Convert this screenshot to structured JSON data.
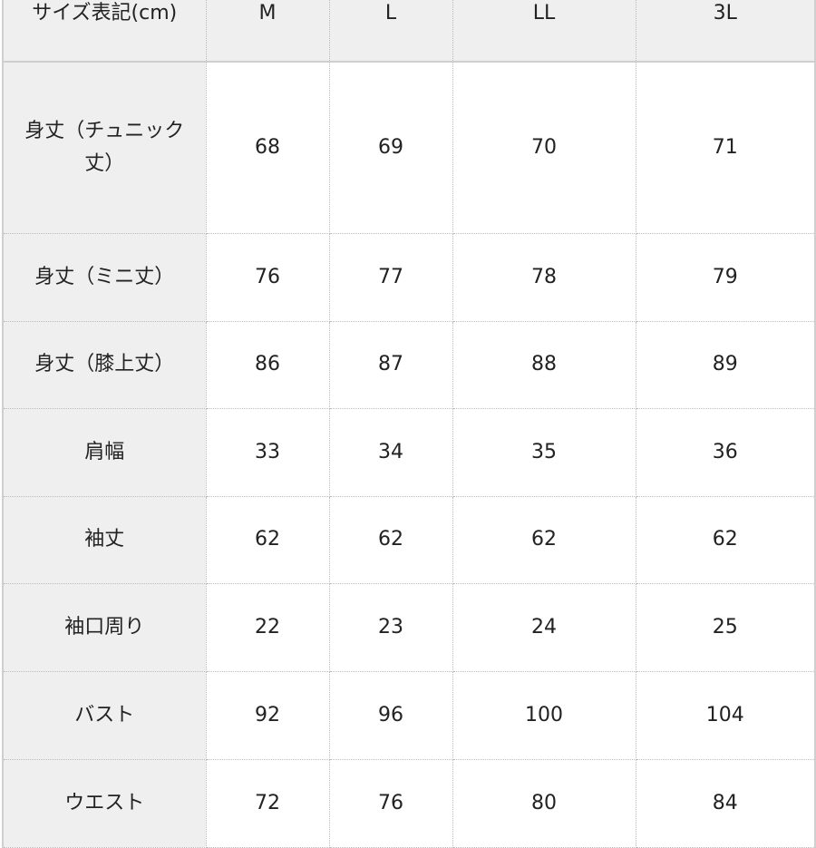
{
  "table": {
    "header": [
      "サイズ表記(cm)",
      "M",
      "L",
      "LL",
      "3L"
    ],
    "rows": [
      {
        "label": "身丈（チュニック丈）",
        "values": [
          "68",
          "69",
          "70",
          "71"
        ]
      },
      {
        "label": "身丈（ミニ丈）",
        "values": [
          "76",
          "77",
          "78",
          "79"
        ]
      },
      {
        "label": "身丈（膝上丈）",
        "values": [
          "86",
          "87",
          "88",
          "89"
        ]
      },
      {
        "label": "肩幅",
        "values": [
          "33",
          "34",
          "35",
          "36"
        ]
      },
      {
        "label": "袖丈",
        "values": [
          "62",
          "62",
          "62",
          "62"
        ]
      },
      {
        "label": "袖口周り",
        "values": [
          "22",
          "23",
          "24",
          "25"
        ]
      },
      {
        "label": "バスト",
        "values": [
          "92",
          "96",
          "100",
          "104"
        ]
      },
      {
        "label": "ウエスト",
        "values": [
          "72",
          "76",
          "80",
          "84"
        ]
      }
    ]
  }
}
